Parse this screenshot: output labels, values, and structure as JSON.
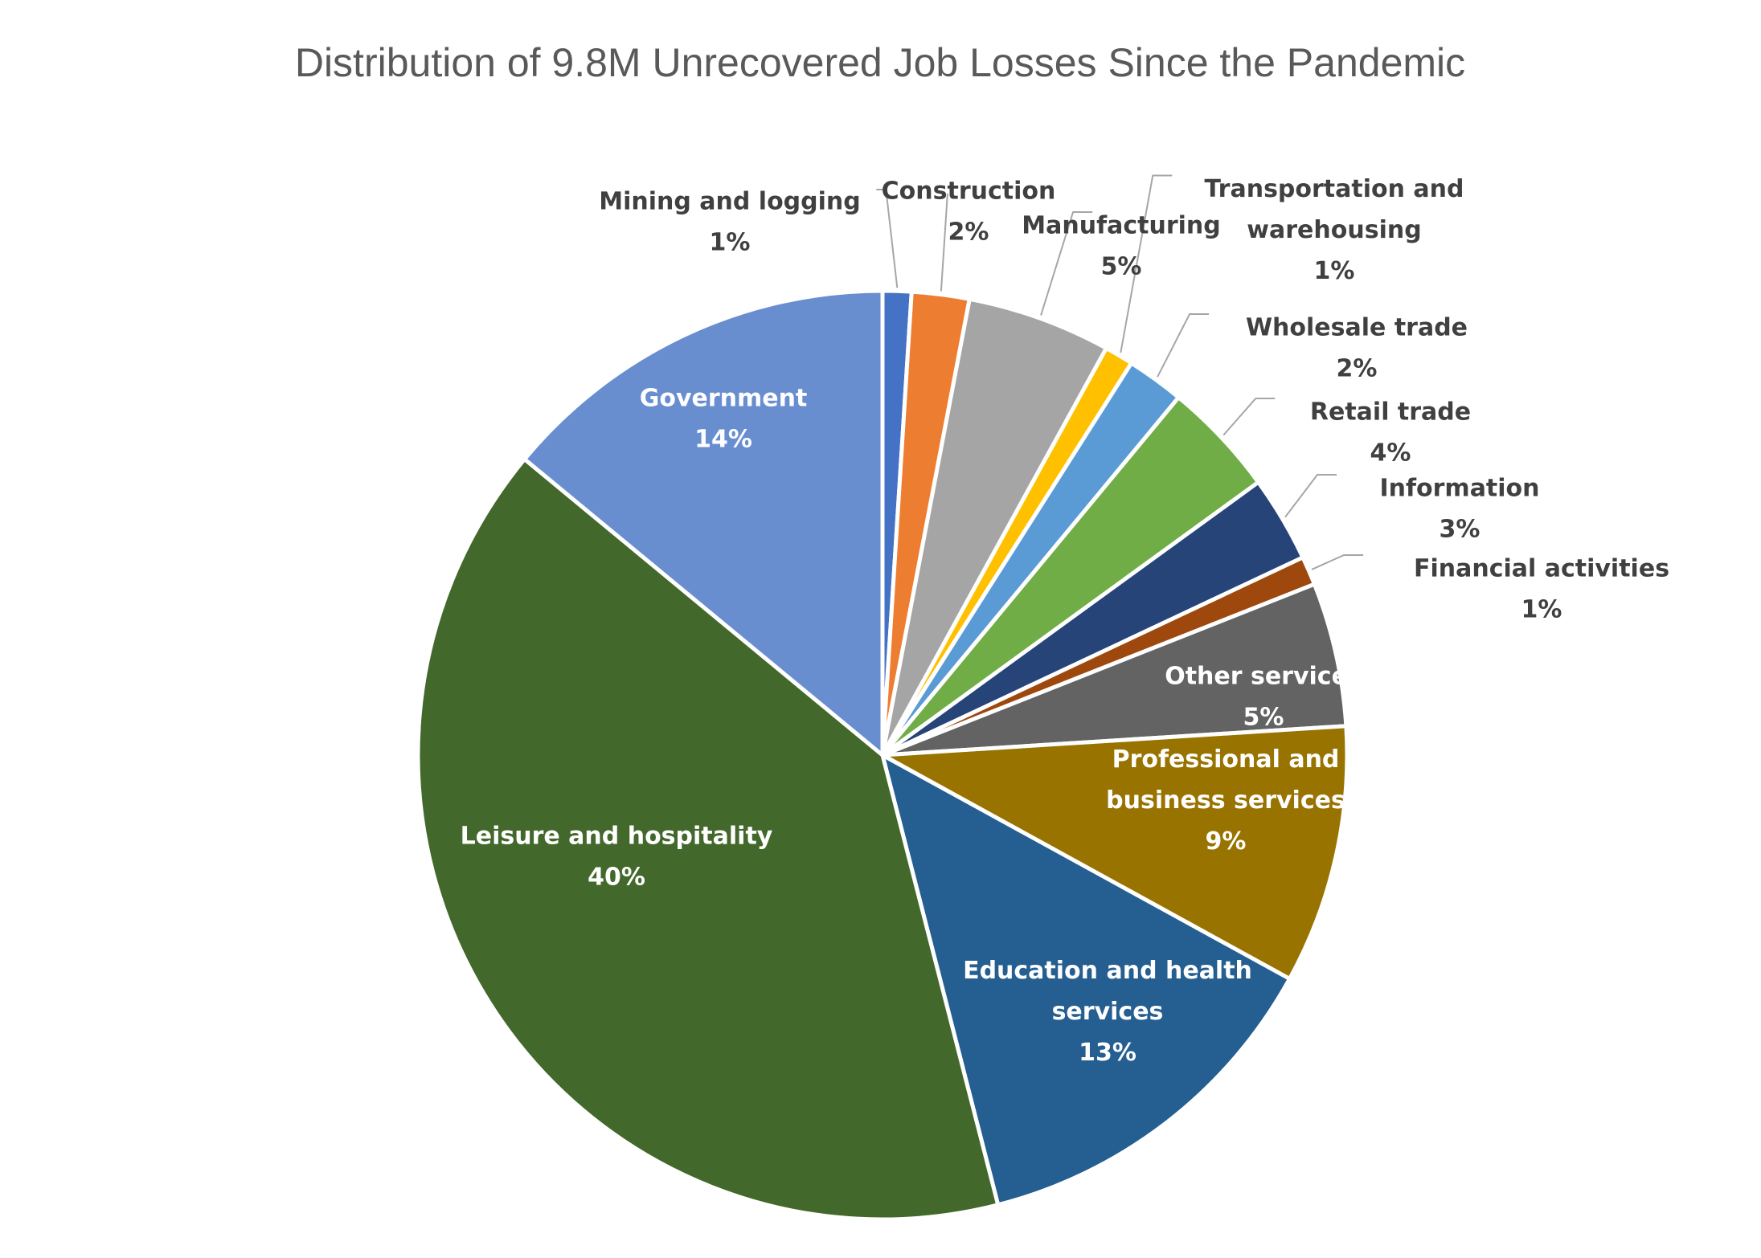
{
  "chart_data": {
    "type": "pie",
    "title": "Distribution of 9.8M Unrecovered Job Losses Since the Pandemic",
    "slices": [
      {
        "label_lines": [
          "Mining and logging"
        ],
        "label": "Mining and logging",
        "value": 1,
        "pct_label": "1%",
        "color": "#4472C4"
      },
      {
        "label_lines": [
          "Construction"
        ],
        "label": "Construction",
        "value": 2,
        "pct_label": "2%",
        "color": "#ED7D31"
      },
      {
        "label_lines": [
          "Manufacturing"
        ],
        "label": "Manufacturing",
        "value": 5,
        "pct_label": "5%",
        "color": "#A5A5A5"
      },
      {
        "label_lines": [
          "Transportation and",
          "warehousing"
        ],
        "label": "Transportation and warehousing",
        "value": 1,
        "pct_label": "1%",
        "color": "#FFC000"
      },
      {
        "label_lines": [
          "Wholesale trade"
        ],
        "label": "Wholesale trade",
        "value": 2,
        "pct_label": "2%",
        "color": "#5B9BD5"
      },
      {
        "label_lines": [
          "Retail trade"
        ],
        "label": "Retail trade",
        "value": 4,
        "pct_label": "4%",
        "color": "#70AD47"
      },
      {
        "label_lines": [
          "Information"
        ],
        "label": "Information",
        "value": 3,
        "pct_label": "3%",
        "color": "#264478"
      },
      {
        "label_lines": [
          "Financial activities"
        ],
        "label": "Financial activities",
        "value": 1,
        "pct_label": "1%",
        "color": "#9E480E"
      },
      {
        "label_lines": [
          "Other services"
        ],
        "label": "Other services",
        "value": 5,
        "pct_label": "5%",
        "color": "#636363"
      },
      {
        "label_lines": [
          "Professional and",
          "business services"
        ],
        "label": "Professional and business services",
        "value": 9,
        "pct_label": "9%",
        "color": "#997300"
      },
      {
        "label_lines": [
          "Education and health",
          "services"
        ],
        "label": "Education and health services",
        "value": 13,
        "pct_label": "13%",
        "color": "#255E91"
      },
      {
        "label_lines": [
          "Leisure and hospitality"
        ],
        "label": "Leisure and hospitality",
        "value": 40,
        "pct_label": "40%",
        "color": "#43682B"
      },
      {
        "label_lines": [
          "Government"
        ],
        "label": "Government",
        "value": 14,
        "pct_label": "14%",
        "color": "#698ED0"
      }
    ]
  }
}
